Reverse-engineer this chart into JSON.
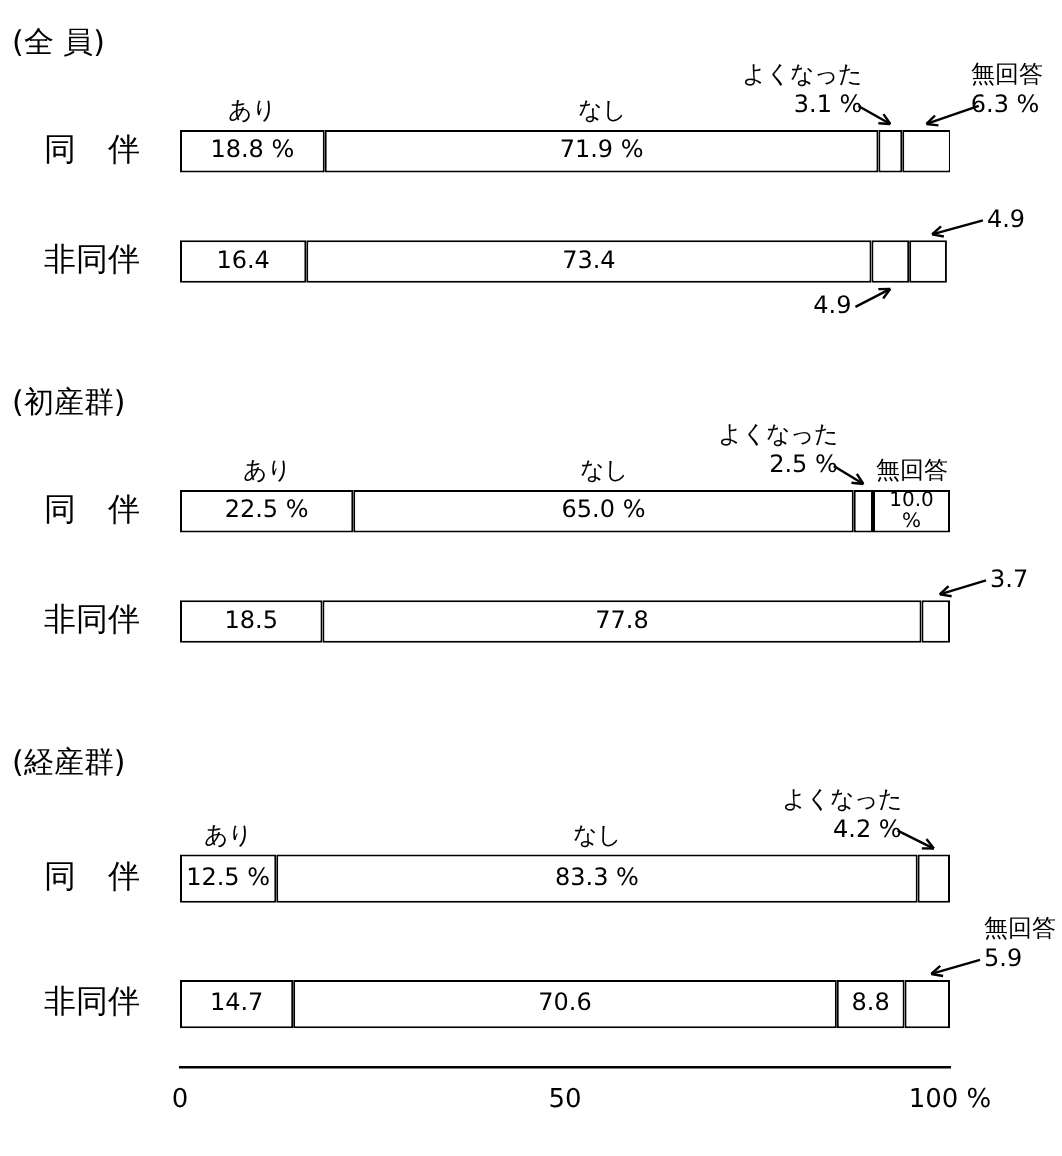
{
  "chart_data": [
    {
      "type": "bar",
      "orientation": "horizontal",
      "stacked": true,
      "title": "(全 員)",
      "categories": [
        "同　伴",
        "非同伴"
      ],
      "xlim": [
        0,
        100
      ],
      "tick_labels": "y",
      "legend": false,
      "series": [
        {
          "name": "あり",
          "color": "#ffffff",
          "values": [
            18.8,
            16.4
          ],
          "value_labels": [
            "18.8 %",
            "16.4"
          ]
        },
        {
          "name": "なし",
          "color": "#ffffff",
          "values": [
            71.9,
            73.4
          ],
          "value_labels": [
            "71.9 %",
            "73.4"
          ]
        },
        {
          "name": "よくなった",
          "color": "#ffffff",
          "values": [
            3.1,
            4.9
          ],
          "value_labels": [
            "3.1 %",
            "4.9"
          ]
        },
        {
          "name": "無回答",
          "color": "#ffffff",
          "values": [
            6.3,
            4.9
          ],
          "value_labels": [
            "6.3 %",
            "4.9"
          ]
        }
      ]
    },
    {
      "type": "bar",
      "orientation": "horizontal",
      "stacked": true,
      "title": "(初産群)",
      "categories": [
        "同　伴",
        "非同伴"
      ],
      "xlim": [
        0,
        100
      ],
      "tick_labels": "y",
      "legend": false,
      "series": [
        {
          "name": "あり",
          "color": "#ffffff",
          "values": [
            22.5,
            18.5
          ],
          "value_labels": [
            "22.5 %",
            "18.5"
          ]
        },
        {
          "name": "なし",
          "color": "#ffffff",
          "values": [
            65.0,
            77.8
          ],
          "value_labels": [
            "65.0 %",
            "77.8"
          ]
        },
        {
          "name": "よくなった",
          "color": "#ffffff",
          "values": [
            2.5,
            null
          ],
          "value_labels": [
            "2.5 %",
            null
          ]
        },
        {
          "name": "無回答",
          "color": "#ffffff",
          "values": [
            10.0,
            3.7
          ],
          "value_labels": [
            "10.0 %",
            "3.7"
          ]
        }
      ]
    },
    {
      "type": "bar",
      "orientation": "horizontal",
      "stacked": true,
      "title": "(経産群)",
      "categories": [
        "同　伴",
        "非同伴"
      ],
      "xlim": [
        0,
        100
      ],
      "xticks": [
        0,
        50,
        {
          "value": 100,
          "label": "100 %"
        }
      ],
      "legend": false,
      "series": [
        {
          "name": "あり",
          "color": "#ffffff",
          "values": [
            12.5,
            14.7
          ],
          "value_labels": [
            "12.5 %",
            "14.7"
          ]
        },
        {
          "name": "なし",
          "color": "#ffffff",
          "values": [
            83.3,
            70.6
          ],
          "value_labels": [
            "83.3 %",
            "70.6"
          ]
        },
        {
          "name": "よくなった",
          "color": "#ffffff",
          "values": [
            4.2,
            8.8
          ],
          "value_labels": [
            "4.2 %",
            "8.8"
          ]
        },
        {
          "name": "無回答",
          "color": "#ffffff",
          "values": [
            null,
            5.9
          ],
          "value_labels": [
            null,
            "5.9"
          ]
        }
      ]
    }
  ]
}
